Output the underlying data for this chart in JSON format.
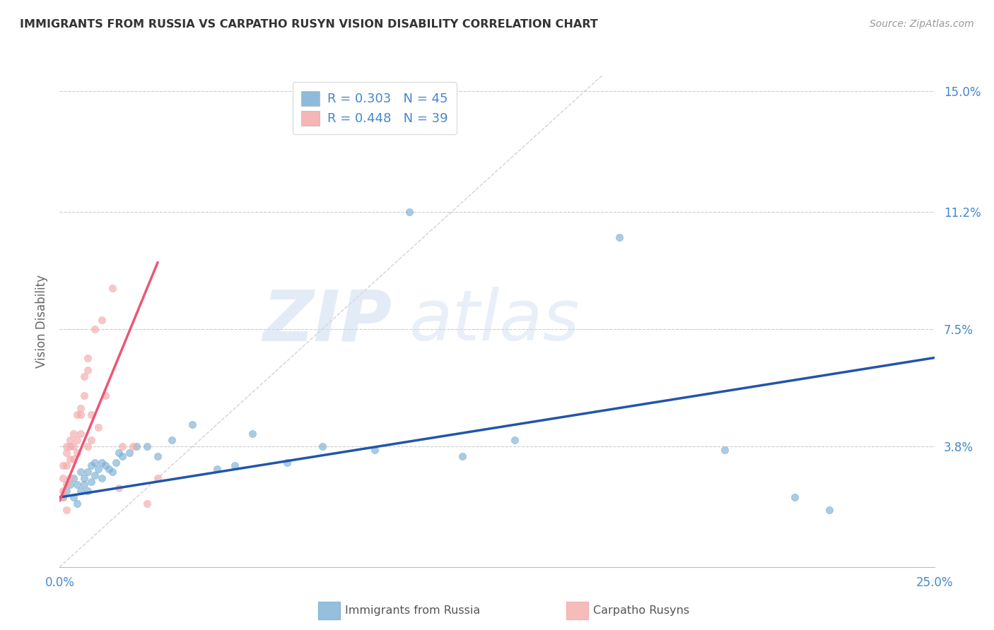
{
  "title": "IMMIGRANTS FROM RUSSIA VS CARPATHO RUSYN VISION DISABILITY CORRELATION CHART",
  "source": "Source: ZipAtlas.com",
  "ylabel": "Vision Disability",
  "xlim": [
    0.0,
    0.25
  ],
  "ylim": [
    0.0,
    0.155
  ],
  "watermark_zip": "ZIP",
  "watermark_atlas": "atlas",
  "legend_r1": "R = 0.303",
  "legend_n1": "N = 45",
  "legend_r2": "R = 0.448",
  "legend_n2": "N = 39",
  "blue_color": "#7BAFD4",
  "pink_color": "#F4AAAA",
  "trend_blue": "#2255AA",
  "trend_pink": "#EE5577",
  "diag_color": "#CCBBBB",
  "grid_color": "#CCCCCC",
  "axis_color": "#4488CC",
  "blue_scatter_x": [
    0.001,
    0.002,
    0.003,
    0.004,
    0.004,
    0.005,
    0.005,
    0.006,
    0.006,
    0.007,
    0.007,
    0.008,
    0.008,
    0.009,
    0.009,
    0.01,
    0.01,
    0.011,
    0.012,
    0.012,
    0.013,
    0.014,
    0.015,
    0.016,
    0.017,
    0.018,
    0.02,
    0.022,
    0.025,
    0.028,
    0.032,
    0.038,
    0.045,
    0.05,
    0.055,
    0.065,
    0.075,
    0.09,
    0.1,
    0.115,
    0.13,
    0.16,
    0.19,
    0.21,
    0.22
  ],
  "blue_scatter_y": [
    0.022,
    0.024,
    0.026,
    0.022,
    0.028,
    0.02,
    0.026,
    0.024,
    0.03,
    0.026,
    0.028,
    0.024,
    0.03,
    0.027,
    0.032,
    0.029,
    0.033,
    0.031,
    0.033,
    0.028,
    0.032,
    0.031,
    0.03,
    0.033,
    0.036,
    0.035,
    0.036,
    0.038,
    0.038,
    0.035,
    0.04,
    0.045,
    0.031,
    0.032,
    0.042,
    0.033,
    0.038,
    0.037,
    0.112,
    0.035,
    0.04,
    0.104,
    0.037,
    0.022,
    0.018
  ],
  "pink_scatter_x": [
    0.001,
    0.001,
    0.001,
    0.001,
    0.002,
    0.002,
    0.002,
    0.002,
    0.002,
    0.003,
    0.003,
    0.003,
    0.003,
    0.004,
    0.004,
    0.004,
    0.005,
    0.005,
    0.005,
    0.006,
    0.006,
    0.006,
    0.007,
    0.007,
    0.008,
    0.008,
    0.008,
    0.009,
    0.009,
    0.01,
    0.011,
    0.012,
    0.013,
    0.015,
    0.017,
    0.018,
    0.021,
    0.025,
    0.028
  ],
  "pink_scatter_y": [
    0.022,
    0.028,
    0.032,
    0.024,
    0.026,
    0.032,
    0.036,
    0.018,
    0.038,
    0.034,
    0.038,
    0.028,
    0.04,
    0.038,
    0.042,
    0.034,
    0.04,
    0.048,
    0.036,
    0.048,
    0.05,
    0.042,
    0.054,
    0.06,
    0.062,
    0.066,
    0.038,
    0.048,
    0.04,
    0.075,
    0.044,
    0.078,
    0.054,
    0.088,
    0.025,
    0.038,
    0.038,
    0.02,
    0.028
  ],
  "blue_trend_x": [
    0.0,
    0.25
  ],
  "blue_trend_y": [
    0.022,
    0.066
  ],
  "pink_trend_x": [
    0.0,
    0.028
  ],
  "pink_trend_y": [
    0.021,
    0.096
  ],
  "diag_line_x": [
    0.0,
    0.155
  ],
  "diag_line_y": [
    0.0,
    0.155
  ],
  "ytick_positions": [
    0.0,
    0.038,
    0.075,
    0.112,
    0.15
  ],
  "ytick_labels": [
    "",
    "3.8%",
    "7.5%",
    "11.2%",
    "15.0%"
  ],
  "xtick_positions": [
    0.0,
    0.05,
    0.1,
    0.15,
    0.2,
    0.25
  ],
  "background_color": "#FFFFFF",
  "title_color": "#333333",
  "marker_size": 55,
  "marker_alpha": 0.65
}
